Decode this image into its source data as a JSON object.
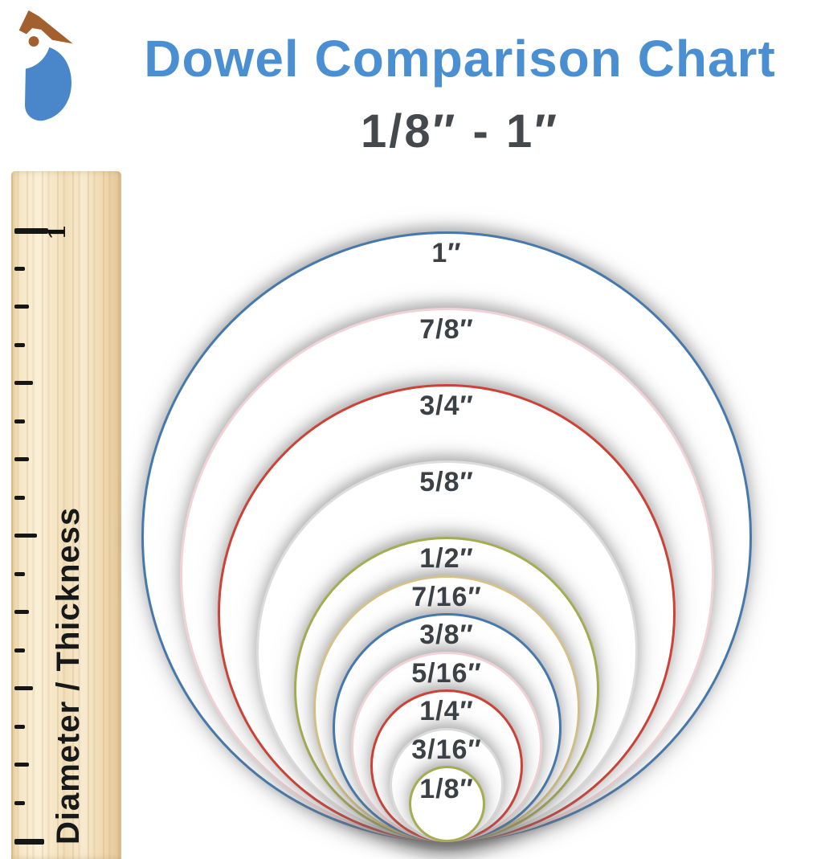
{
  "header": {
    "title": "Dowel Comparison Chart",
    "subtitle": "1/8″ - 1″",
    "title_color": "#4a8fd2",
    "subtitle_color": "#45494e"
  },
  "logo": {
    "name": "woodpecker-bird-logo",
    "head_color": "#a2602e",
    "body_color": "#4a86ca"
  },
  "ruler": {
    "axis_label": "Diameter / Thickness",
    "inch_mark_label": "1",
    "ticks_per_inch": 16,
    "inches_shown": 1,
    "wood_color": "#f2dfb9",
    "tick_color": "#161616"
  },
  "chart_data": {
    "type": "concentric-circle-size-comparison",
    "title": "Dowel Comparison Chart",
    "range_label": "1/8″ - 1″",
    "units": "inches",
    "tangent": "all circles tangent at common bottom point",
    "circles": [
      {
        "label": "1″",
        "diameter_in": 1.0,
        "stroke": "#4579ae"
      },
      {
        "label": "7/8″",
        "diameter_in": 0.875,
        "stroke": "#f2d2d6"
      },
      {
        "label": "3/4″",
        "diameter_in": 0.75,
        "stroke": "#cd4237"
      },
      {
        "label": "5/8″",
        "diameter_in": 0.625,
        "stroke": "#dcdcdc"
      },
      {
        "label": "1/2″",
        "diameter_in": 0.5,
        "stroke": "#a5ad52"
      },
      {
        "label": "7/16″",
        "diameter_in": 0.4375,
        "stroke": "#d5c189"
      },
      {
        "label": "3/8″",
        "diameter_in": 0.375,
        "stroke": "#4579ae"
      },
      {
        "label": "5/16″",
        "diameter_in": 0.3125,
        "stroke": "#f2d2d6"
      },
      {
        "label": "1/4″",
        "diameter_in": 0.25,
        "stroke": "#cd4237"
      },
      {
        "label": "3/16″",
        "diameter_in": 0.1875,
        "stroke": "#dcdcdc"
      },
      {
        "label": "1/8″",
        "diameter_in": 0.125,
        "stroke": "#a5ad52"
      }
    ]
  }
}
